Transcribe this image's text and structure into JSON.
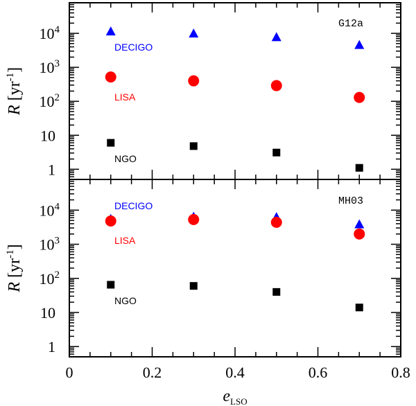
{
  "chart_data": {
    "type": "scatter",
    "xlabel": "e",
    "xlabel_sub": "LSO",
    "ylabel": "R  [yr",
    "ylabel_exp": "-1",
    "ylabel_close": "]",
    "x_ticks": [
      "0",
      "0.2",
      "0.4",
      "0.6",
      "0.8"
    ],
    "xlim": [
      0,
      0.8
    ],
    "colors": {
      "DECIGO": "#0000ff",
      "LISA": "#ff0000",
      "NGO": "#000000"
    },
    "panels": [
      {
        "name": "G12a",
        "model": "G12a",
        "y_scale": "log",
        "ylim_log10": [
          -0.3,
          4.9
        ],
        "y_ticks": [
          {
            "log": 0,
            "label": "1"
          },
          {
            "log": 1,
            "label": "10"
          },
          {
            "log": 2,
            "base": "10",
            "exp": "2"
          },
          {
            "log": 3,
            "base": "10",
            "exp": "3"
          },
          {
            "log": 4,
            "base": "10",
            "exp": "4"
          }
        ],
        "series": [
          {
            "name": "DECIGO",
            "label": "DECIGO",
            "marker": "triangle",
            "x": [
              0.1,
              0.3,
              0.5,
              0.7
            ],
            "y": [
              11500,
              10000,
              7800,
              4600
            ]
          },
          {
            "name": "LISA",
            "label": "LISA",
            "marker": "circle",
            "x": [
              0.1,
              0.3,
              0.5,
              0.7
            ],
            "y": [
              520,
              400,
              290,
              130
            ]
          },
          {
            "name": "NGO",
            "label": "NGO",
            "marker": "square",
            "x": [
              0.1,
              0.3,
              0.5,
              0.7
            ],
            "y": [
              6.0,
              4.8,
              3.1,
              1.1
            ]
          }
        ]
      },
      {
        "name": "MH03",
        "model": "MH03",
        "y_scale": "log",
        "ylim_log10": [
          -0.3,
          4.9
        ],
        "y_ticks": [
          {
            "log": 0,
            "label": "1"
          },
          {
            "log": 1,
            "label": "10"
          },
          {
            "log": 2,
            "base": "10",
            "exp": "2"
          },
          {
            "log": 3,
            "base": "10",
            "exp": "3"
          },
          {
            "log": 4,
            "base": "10",
            "exp": "4"
          }
        ],
        "series": [
          {
            "name": "DECIGO",
            "label": "DECIGO",
            "marker": "triangle",
            "x": [
              0.1,
              0.3,
              0.5,
              0.7
            ],
            "y": [
              5600,
              6500,
              6300,
              3900
            ]
          },
          {
            "name": "LISA",
            "label": "LISA",
            "marker": "circle",
            "x": [
              0.1,
              0.3,
              0.5,
              0.7
            ],
            "y": [
              4800,
              5300,
              4400,
              2000
            ]
          },
          {
            "name": "NGO",
            "label": "NGO",
            "marker": "square",
            "x": [
              0.1,
              0.3,
              0.5,
              0.7
            ],
            "y": [
              65,
              60,
              40,
              14
            ]
          }
        ]
      }
    ]
  }
}
